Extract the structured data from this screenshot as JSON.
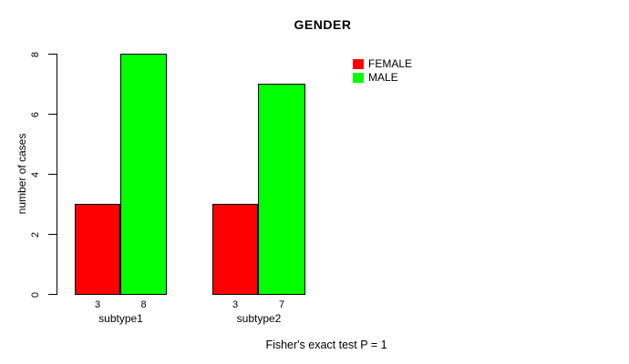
{
  "chart_data": {
    "type": "bar",
    "title": "GENDER",
    "xlabel": "",
    "ylabel": "number of cases",
    "categories": [
      "subtype1",
      "subtype2"
    ],
    "series": [
      {
        "name": "FEMALE",
        "color": "#ff0000",
        "values": [
          3,
          3
        ]
      },
      {
        "name": "MALE",
        "color": "#00ff00",
        "values": [
          8,
          7
        ]
      }
    ],
    "bar_value_labels": [
      [
        "3",
        "8"
      ],
      [
        "3",
        "7"
      ]
    ],
    "ylim": [
      0,
      8
    ],
    "yticks": [
      "0",
      "2",
      "4",
      "6",
      "8"
    ],
    "grid": false,
    "legend_position": "top-right",
    "annotation": "Fisher's exact test P = 1",
    "bar_border_color": "#000000",
    "background_color": "#ffffff"
  }
}
